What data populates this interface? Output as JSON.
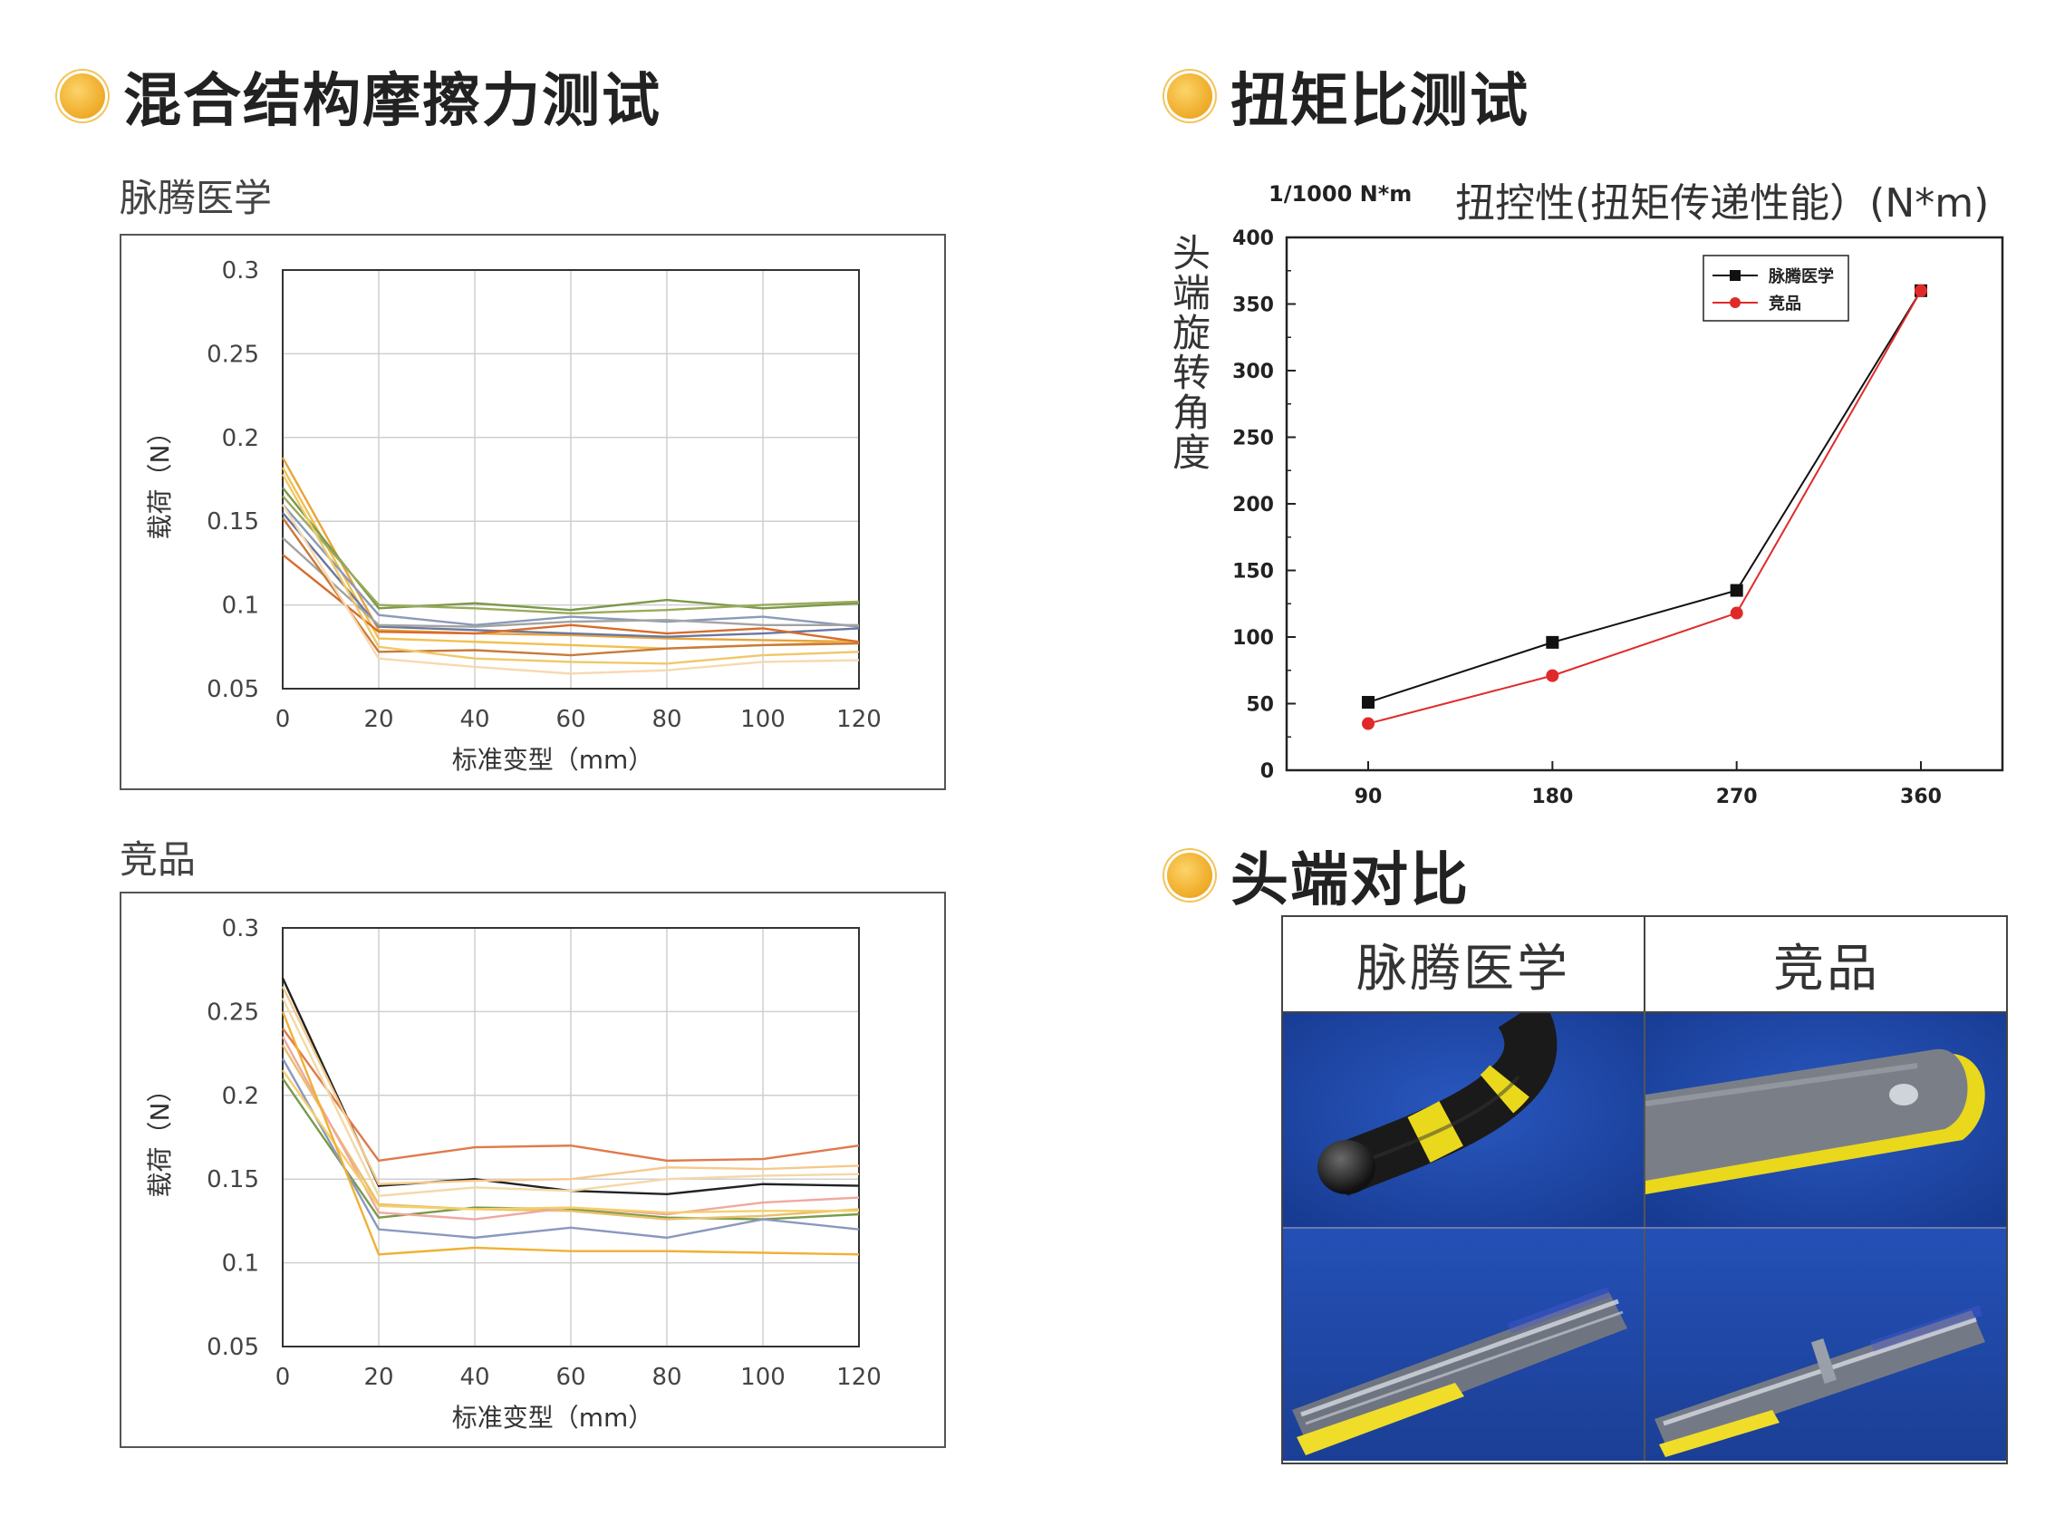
{
  "headings": {
    "friction": "混合结构摩擦力测试",
    "torque": "扭矩比测试",
    "tip": "头端对比"
  },
  "friction": {
    "ours_label": "脉腾医学",
    "comp_label": "竞品"
  },
  "torque": {
    "unit_label": "1/1000 N*m",
    "title": "扭控性(扭矩传递性能）(N*m)",
    "ylabel": "头端旋转角度"
  },
  "tip_compare": {
    "col_ours": "脉腾医学",
    "col_comp": "竞品"
  },
  "colors": {
    "accent": "#f2b233",
    "blue_bg": "#1e43a0",
    "yellow_stripe": "#f3dd22"
  },
  "chart_data": [
    {
      "type": "line",
      "title": "",
      "xlabel": "标准变型（mm）",
      "ylabel": "载荷（N）",
      "x": [
        0,
        20,
        40,
        60,
        80,
        100,
        120
      ],
      "xlim": [
        0,
        120
      ],
      "ylim": [
        0.05,
        0.3
      ],
      "xticks": [
        "0",
        "20",
        "40",
        "60",
        "80",
        "100",
        "120"
      ],
      "yticks": [
        "0.05",
        "0.1",
        "0.15",
        "0.2",
        "0.25",
        "0.3"
      ],
      "grid": true,
      "series": [
        {
          "color": "#e8a33a",
          "values": [
            0.188,
            0.085,
            0.083,
            0.082,
            0.08,
            0.079,
            0.078
          ]
        },
        {
          "color": "#f2c04f",
          "values": [
            0.182,
            0.08,
            0.078,
            0.076,
            0.074,
            0.076,
            0.078
          ]
        },
        {
          "color": "#7a9a4a",
          "values": [
            0.17,
            0.098,
            0.101,
            0.097,
            0.103,
            0.098,
            0.101
          ]
        },
        {
          "color": "#9aaa5a",
          "values": [
            0.165,
            0.1,
            0.098,
            0.095,
            0.097,
            0.1,
            0.102
          ]
        },
        {
          "color": "#8a9ab8",
          "values": [
            0.16,
            0.094,
            0.088,
            0.093,
            0.09,
            0.093,
            0.087
          ]
        },
        {
          "color": "#6a78a0",
          "values": [
            0.155,
            0.087,
            0.085,
            0.083,
            0.081,
            0.083,
            0.086
          ]
        },
        {
          "color": "#a3a3a3",
          "values": [
            0.14,
            0.088,
            0.087,
            0.09,
            0.091,
            0.088,
            0.088
          ]
        },
        {
          "color": "#d86b2a",
          "values": [
            0.13,
            0.084,
            0.083,
            0.088,
            0.083,
            0.086,
            0.078
          ]
        },
        {
          "color": "#c97a3a",
          "values": [
            0.152,
            0.072,
            0.073,
            0.07,
            0.074,
            0.076,
            0.077
          ]
        },
        {
          "color": "#f0c86a",
          "values": [
            0.178,
            0.075,
            0.068,
            0.066,
            0.065,
            0.07,
            0.072
          ]
        },
        {
          "color": "#f7d9b0",
          "values": [
            0.16,
            0.068,
            0.063,
            0.059,
            0.061,
            0.066,
            0.067
          ]
        }
      ]
    },
    {
      "type": "line",
      "title": "",
      "xlabel": "标准变型（mm）",
      "ylabel": "载荷（N）",
      "x": [
        0,
        20,
        40,
        60,
        80,
        100,
        120
      ],
      "xlim": [
        0,
        120
      ],
      "ylim": [
        0.05,
        0.3
      ],
      "xticks": [
        "0",
        "20",
        "40",
        "60",
        "80",
        "100",
        "120"
      ],
      "yticks": [
        "0.05",
        "0.1",
        "0.15",
        "0.2",
        "0.25",
        "0.3"
      ],
      "grid": true,
      "series": [
        {
          "color": "#222222",
          "values": [
            0.27,
            0.146,
            0.15,
            0.143,
            0.141,
            0.147,
            0.146
          ]
        },
        {
          "color": "#e07a4a",
          "values": [
            0.24,
            0.161,
            0.169,
            0.17,
            0.161,
            0.162,
            0.17
          ]
        },
        {
          "color": "#f6c98a",
          "values": [
            0.265,
            0.147,
            0.149,
            0.15,
            0.157,
            0.156,
            0.158
          ]
        },
        {
          "color": "#f3d9a8",
          "values": [
            0.258,
            0.14,
            0.145,
            0.143,
            0.15,
            0.152,
            0.153
          ]
        },
        {
          "color": "#7a9a4a",
          "values": [
            0.21,
            0.127,
            0.133,
            0.132,
            0.127,
            0.126,
            0.129
          ]
        },
        {
          "color": "#8a98c0",
          "values": [
            0.222,
            0.12,
            0.115,
            0.121,
            0.115,
            0.126,
            0.12
          ]
        },
        {
          "color": "#e8c06a",
          "values": [
            0.23,
            0.135,
            0.132,
            0.131,
            0.126,
            0.128,
            0.132
          ]
        },
        {
          "color": "#f0a8a0",
          "values": [
            0.235,
            0.13,
            0.126,
            0.133,
            0.129,
            0.136,
            0.139
          ]
        },
        {
          "color": "#f5cf6a",
          "values": [
            0.215,
            0.134,
            0.132,
            0.133,
            0.13,
            0.131,
            0.131
          ]
        },
        {
          "color": "#efb133",
          "values": [
            0.25,
            0.105,
            0.109,
            0.107,
            0.107,
            0.106,
            0.105
          ]
        }
      ]
    },
    {
      "type": "line",
      "title": "扭控性(扭矩传递性能）(N*m)",
      "xlabel": "",
      "ylabel": "头端旋转角度",
      "categories": [
        "90",
        "180",
        "270",
        "360"
      ],
      "ylim": [
        0,
        400
      ],
      "yticks": [
        "0",
        "50",
        "100",
        "150",
        "200",
        "250",
        "300",
        "350",
        "400"
      ],
      "legend": "top-right",
      "series": [
        {
          "name": "脉腾医学",
          "color": "#111111",
          "marker": "square",
          "values": [
            51,
            96,
            135,
            360
          ]
        },
        {
          "name": "竞品",
          "color": "#e02a2a",
          "marker": "circle",
          "values": [
            35,
            71,
            118,
            360
          ]
        }
      ]
    }
  ]
}
